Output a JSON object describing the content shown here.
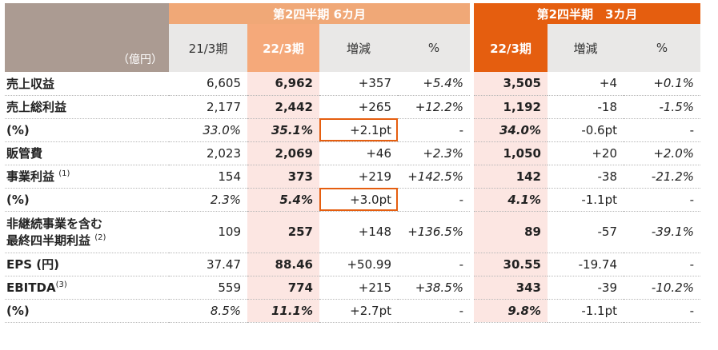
{
  "header": {
    "unit": "（億円）",
    "group_6m": "第2四半期 6カ月",
    "group_3m": "第2四半期　3カ月",
    "cols_6m": [
      "21/3期",
      "22/3期",
      "増減",
      "%"
    ],
    "cols_3m": [
      "22/3期",
      "増減",
      "%"
    ]
  },
  "rows": [
    {
      "label": "売上収益",
      "note": "",
      "v": [
        "6,605",
        "6,962",
        "+357",
        "+5.4%",
        "3,505",
        "+4",
        "+0.1%"
      ]
    },
    {
      "label": "売上総利益",
      "note": "",
      "v": [
        "2,177",
        "2,442",
        "+265",
        "+12.2%",
        "1,192",
        "-18",
        "-1.5%"
      ]
    },
    {
      "label": "(%)",
      "note": "",
      "v": [
        "33.0%",
        "35.1%",
        "+2.1pt",
        "-",
        "34.0%",
        "-0.6pt",
        "-"
      ]
    },
    {
      "label": "販管費",
      "note": "",
      "v": [
        "2,023",
        "2,069",
        "+46",
        "+2.3%",
        "1,050",
        "+20",
        "+2.0%"
      ]
    },
    {
      "label": "事業利益",
      "note": "(1)",
      "v": [
        "154",
        "373",
        "+219",
        "+142.5%",
        "142",
        "-38",
        "-21.2%"
      ]
    },
    {
      "label": "(%)",
      "note": "",
      "v": [
        "2.3%",
        "5.4%",
        "+3.0pt",
        "-",
        "4.1%",
        "-1.1pt",
        "-"
      ]
    },
    {
      "label": "非継続事業を含む",
      "label2": "最終四半期利益",
      "note": "(2)",
      "v": [
        "109",
        "257",
        "+148",
        "+136.5%",
        "89",
        "-57",
        "-39.1%"
      ]
    },
    {
      "label": "EPS (円)",
      "note": "",
      "v": [
        "37.47",
        "88.46",
        "+50.99",
        "-",
        "30.55",
        "-19.74",
        "-"
      ]
    },
    {
      "label": "EBITDA",
      "note": "(3)",
      "v": [
        "559",
        "774",
        "+215",
        "+38.5%",
        "343",
        "-39",
        "-10.2%"
      ]
    },
    {
      "label": "(%)",
      "note": "",
      "v": [
        "8.5%",
        "11.1%",
        "+2.7pt",
        "-",
        "9.8%",
        "-1.1pt",
        "-"
      ]
    }
  ]
}
